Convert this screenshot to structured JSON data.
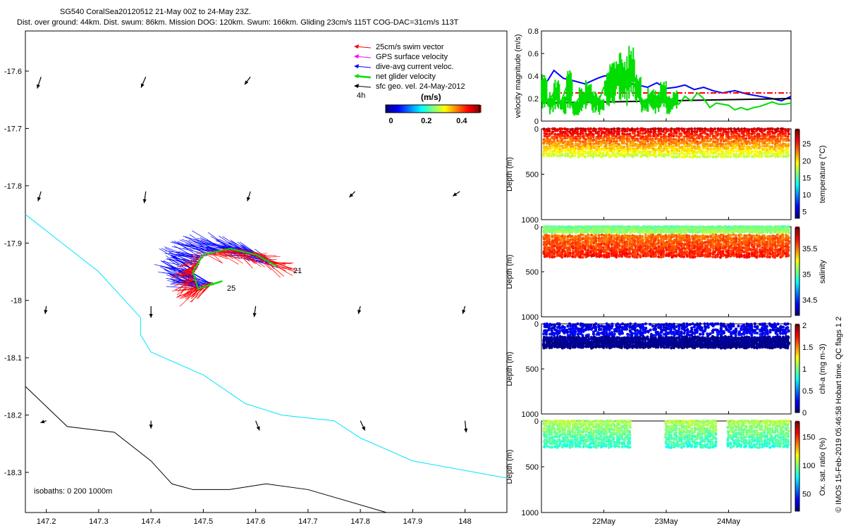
{
  "header": {
    "line1": "SG540 CoralSea20120512 21-May 00Z to 24-May 23Z.",
    "line2": "Dist. over ground: 44km. Dist. swum: 86km. Mission DOG: 120km. Swum: 166km. Gliding 23cm/s 115T COG-DAC=31cm/s 113T"
  },
  "side_label": "© IMOS 15-Feb-2019 05:46:58 Hobart time. QC flags 1  2",
  "colors": {
    "swim": "#ff0000",
    "gps": "#ff00ff",
    "dive_current": "#0000ff",
    "net_glider": "#00dd00",
    "geo_vel": "#000000",
    "isobath_0": "#000000",
    "isobath_200": "#00e5ff",
    "ref_line": "#ff0000"
  },
  "chart_data": [
    {
      "type": "map",
      "xlim": [
        147.16,
        148.08
      ],
      "ylim": [
        -18.37,
        -17.53
      ],
      "xticks": [
        "147.2",
        "147.3",
        "147.4",
        "147.5",
        "147.6",
        "147.7",
        "147.8",
        "147.9",
        "148"
      ],
      "yticks": [
        "-17.6",
        "-17.7",
        "-17.8",
        "-17.9",
        "-18",
        "-18.1",
        "-18.2",
        "-18.3"
      ],
      "legend": {
        "entries": [
          "25cm/s swim vector",
          "GPS surface velocity",
          "dive-avg current veloc.",
          "net glider velocity",
          "sfc geo. vel. 24-May-2012"
        ],
        "extra_label": "4h",
        "colorbar_title": "(m/s)",
        "colorbar_ticks": [
          "0",
          "0.2",
          "0.4"
        ],
        "colorbar_range": [
          -0.03,
          0.5
        ]
      },
      "isobaths_label": "isobaths: 0   200  1000m",
      "track_labels": [
        "21",
        "25"
      ],
      "geo_vectors": [
        {
          "lon": 147.19,
          "lat": -17.61,
          "u": -0.01,
          "v": -0.03
        },
        {
          "lon": 147.39,
          "lat": -17.61,
          "u": -0.012,
          "v": -0.028
        },
        {
          "lon": 147.59,
          "lat": -17.61,
          "u": -0.015,
          "v": -0.02
        },
        {
          "lon": 147.19,
          "lat": -17.81,
          "u": -0.008,
          "v": -0.025
        },
        {
          "lon": 147.39,
          "lat": -17.81,
          "u": -0.004,
          "v": -0.03
        },
        {
          "lon": 147.59,
          "lat": -17.81,
          "u": -0.008,
          "v": -0.025
        },
        {
          "lon": 147.79,
          "lat": -17.81,
          "u": -0.015,
          "v": -0.015
        },
        {
          "lon": 147.99,
          "lat": -17.81,
          "u": -0.018,
          "v": -0.012
        },
        {
          "lon": 147.2,
          "lat": -18.01,
          "u": -0.003,
          "v": -0.02
        },
        {
          "lon": 147.4,
          "lat": -18.01,
          "u": 0.0,
          "v": -0.03
        },
        {
          "lon": 147.6,
          "lat": -18.01,
          "u": -0.004,
          "v": -0.028
        },
        {
          "lon": 147.8,
          "lat": -18.01,
          "u": -0.005,
          "v": -0.02
        },
        {
          "lon": 148.0,
          "lat": -18.01,
          "u": -0.006,
          "v": -0.02
        },
        {
          "lon": 147.2,
          "lat": -18.21,
          "u": -0.015,
          "v": -0.005
        },
        {
          "lon": 147.4,
          "lat": -18.21,
          "u": 0.0,
          "v": -0.02
        },
        {
          "lon": 147.6,
          "lat": -18.21,
          "u": 0.01,
          "v": -0.025
        },
        {
          "lon": 147.8,
          "lat": -18.21,
          "u": 0.012,
          "v": -0.025
        },
        {
          "lon": 148.0,
          "lat": -18.21,
          "u": 0.003,
          "v": -0.03
        }
      ],
      "isobath_200": [
        [
          147.16,
          -17.85
        ],
        [
          147.23,
          -17.9
        ],
        [
          147.3,
          -17.95
        ],
        [
          147.35,
          -18.0
        ],
        [
          147.38,
          -18.03
        ],
        [
          147.38,
          -18.06
        ],
        [
          147.4,
          -18.09
        ],
        [
          147.5,
          -18.13
        ],
        [
          147.58,
          -18.18
        ],
        [
          147.65,
          -18.2
        ],
        [
          147.75,
          -18.21
        ],
        [
          147.8,
          -18.24
        ],
        [
          147.9,
          -18.28
        ],
        [
          148.08,
          -18.31
        ]
      ],
      "isobath_0": [
        [
          147.16,
          -18.15
        ],
        [
          147.24,
          -18.22
        ],
        [
          147.33,
          -18.23
        ],
        [
          147.4,
          -18.28
        ],
        [
          147.44,
          -18.32
        ],
        [
          147.48,
          -18.33
        ],
        [
          147.55,
          -18.33
        ],
        [
          147.62,
          -18.32
        ],
        [
          147.7,
          -18.33
        ],
        [
          147.85,
          -18.37
        ]
      ],
      "track": [
        [
          147.64,
          -17.94
        ],
        [
          147.6,
          -17.92
        ],
        [
          147.55,
          -17.91
        ],
        [
          147.5,
          -17.92
        ],
        [
          147.48,
          -17.95
        ],
        [
          147.49,
          -17.98
        ],
        [
          147.52,
          -17.97
        ]
      ]
    },
    {
      "type": "line",
      "ylabel": "velocity magnitude (m/s)",
      "ylim": [
        0,
        0.8
      ],
      "yticks": [
        "0",
        "0.2",
        "0.4",
        "0.6",
        "0.8"
      ],
      "xlim": [
        0,
        4
      ],
      "xticks": [
        "22May",
        "23May",
        "24May"
      ],
      "xtick_values": [
        1,
        2,
        3
      ],
      "series": [
        {
          "color": "#0000ff",
          "x": [
            0,
            0.1,
            0.2,
            0.35,
            0.5,
            0.7,
            0.9,
            1.0,
            1.2,
            1.35,
            1.45,
            1.55,
            1.7,
            1.85,
            2.0,
            2.15,
            2.3,
            2.45,
            2.6,
            2.75,
            2.9,
            3.1,
            3.3,
            3.5,
            3.7,
            3.85,
            4.0
          ],
          "values": [
            0.3,
            0.36,
            0.45,
            0.38,
            0.36,
            0.33,
            0.38,
            0.4,
            0.41,
            0.38,
            0.33,
            0.32,
            0.3,
            0.34,
            0.29,
            0.3,
            0.32,
            0.28,
            0.3,
            0.27,
            0.25,
            0.27,
            0.24,
            0.22,
            0.2,
            0.18,
            0.22
          ]
        },
        {
          "color": "#ff0000",
          "dashed": true,
          "x": [
            0,
            4
          ],
          "values": [
            0.25,
            0.25
          ]
        },
        {
          "color": "#000000",
          "x": [
            0,
            4
          ],
          "values": [
            0.16,
            0.2
          ]
        },
        {
          "color": "#00dd00",
          "x": [
            0,
            0.1,
            0.2,
            0.3,
            0.4,
            0.5,
            0.6,
            0.7,
            0.8,
            0.9,
            1.0,
            1.1,
            1.2,
            1.3,
            1.4,
            1.5,
            1.6,
            1.7,
            1.8,
            1.9,
            2.0,
            2.1,
            2.2,
            2.3,
            2.4,
            2.5,
            2.6,
            2.7,
            2.8,
            2.9,
            3.0,
            3.1,
            3.2,
            3.3,
            3.4,
            3.5,
            3.6,
            3.7,
            3.8,
            3.9,
            4.0
          ],
          "values": [
            0.28,
            0.17,
            0.25,
            0.15,
            0.3,
            0.12,
            0.2,
            0.25,
            0.18,
            0.15,
            0.3,
            0.36,
            0.42,
            0.38,
            0.46,
            0.3,
            0.15,
            0.2,
            0.18,
            0.25,
            0.15,
            0.2,
            0.15,
            0.22,
            0.18,
            0.25,
            0.2,
            0.12,
            0.16,
            0.15,
            0.14,
            0.1,
            0.12,
            0.1,
            0.12,
            0.13,
            0.15,
            0.17,
            0.15,
            0.15,
            0.16
          ]
        }
      ]
    },
    {
      "type": "scatter",
      "ylabel": "Depth (m)",
      "yticks": [
        "0",
        "500",
        "1000"
      ],
      "ylim": [
        0,
        1000
      ],
      "cblabel": "temperature (°C)",
      "cbticks": [
        "5",
        "10",
        "15",
        "20",
        "25"
      ],
      "cbrange": [
        3,
        29
      ],
      "profiles": [
        {
          "depth_min": 0,
          "depth_max": 300,
          "value_top": 27,
          "value_bottom": 18
        }
      ]
    },
    {
      "type": "scatter",
      "ylabel": "Depth (m)",
      "yticks": [
        "0",
        "500",
        "1000"
      ],
      "ylim": [
        0,
        1000
      ],
      "cblabel": "salinity",
      "cbticks": [
        "34.5",
        "35",
        "35.5"
      ],
      "cbrange": [
        34.2,
        35.9
      ],
      "profiles": [
        {
          "depth_min": 0,
          "depth_max": 60,
          "value_top": 35.0,
          "value_bottom": 35.1
        },
        {
          "depth_min": 100,
          "depth_max": 330,
          "value_top": 35.5,
          "value_bottom": 35.65
        }
      ]
    },
    {
      "type": "scatter",
      "ylabel": "Depth (m)",
      "yticks": [
        "0",
        "500",
        "1000"
      ],
      "ylim": [
        0,
        1000
      ],
      "cblabel": "chl-a (mg m-3)",
      "cbticks": [
        "0",
        "0.5",
        "1",
        "1.5",
        "2"
      ],
      "cbrange": [
        0,
        2
      ],
      "profiles": [
        {
          "depth_min": 0,
          "depth_max": 120,
          "value_top": 0.15,
          "value_bottom": 0.25
        },
        {
          "depth_min": 150,
          "depth_max": 260,
          "value_top": 0.05,
          "value_bottom": 0.0
        }
      ]
    },
    {
      "type": "scatter",
      "ylabel": "Depth (m)",
      "yticks": [
        "0",
        "500",
        "1000"
      ],
      "ylim": [
        0,
        1000
      ],
      "cblabel": "Ox. sat. ratio (%)",
      "cbticks": [
        "50",
        "100",
        "150"
      ],
      "cbrange": [
        20,
        175
      ],
      "profiles": [
        {
          "depth_min": 0,
          "depth_max": 280,
          "value_top": 105,
          "value_bottom": 85
        }
      ]
    }
  ]
}
